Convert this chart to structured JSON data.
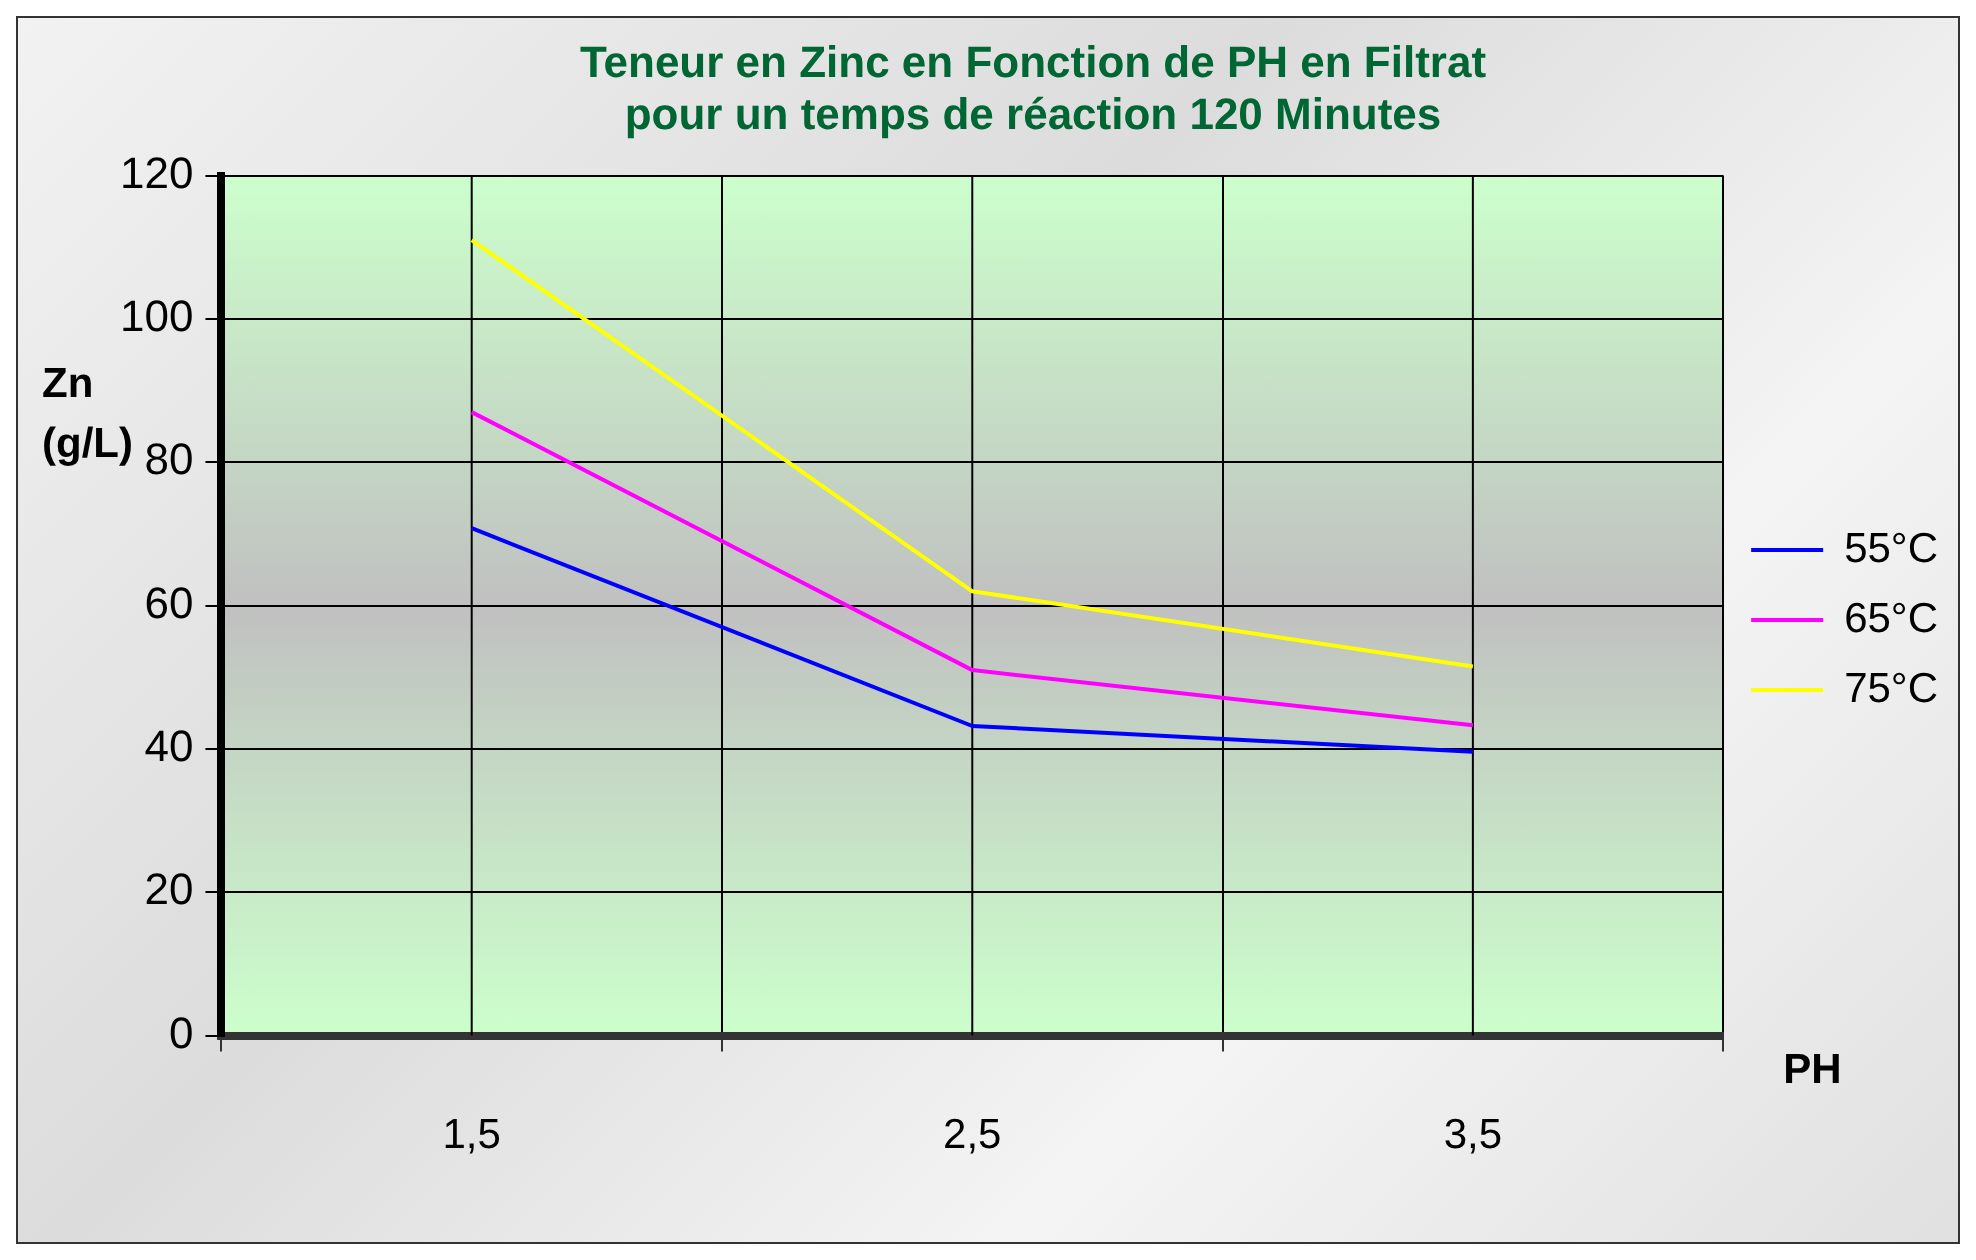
{
  "chart_data": {
    "type": "line",
    "title": "Teneur en Zinc en Fonction de PH en Filtrat\npour un temps de réaction 120 Minutes",
    "xlabel": "PH",
    "ylabel": "Zn\n(g/L)",
    "categories": [
      "1,5",
      "2,5",
      "3,5"
    ],
    "series": [
      {
        "name": "55°C",
        "color": "#0000ff",
        "values": [
          70.8,
          43.2,
          39.6
        ]
      },
      {
        "name": "65°C",
        "color": "#ff00ff",
        "values": [
          87,
          51,
          43.3
        ]
      },
      {
        "name": "75°C",
        "color": "#ffff00",
        "values": [
          111,
          62,
          51.5
        ]
      }
    ],
    "ylim": [
      0,
      120
    ],
    "yticks": [
      0,
      20,
      40,
      60,
      80,
      100,
      120
    ],
    "grid": true,
    "legend": "right",
    "marker": "none",
    "line_style": "solid"
  }
}
